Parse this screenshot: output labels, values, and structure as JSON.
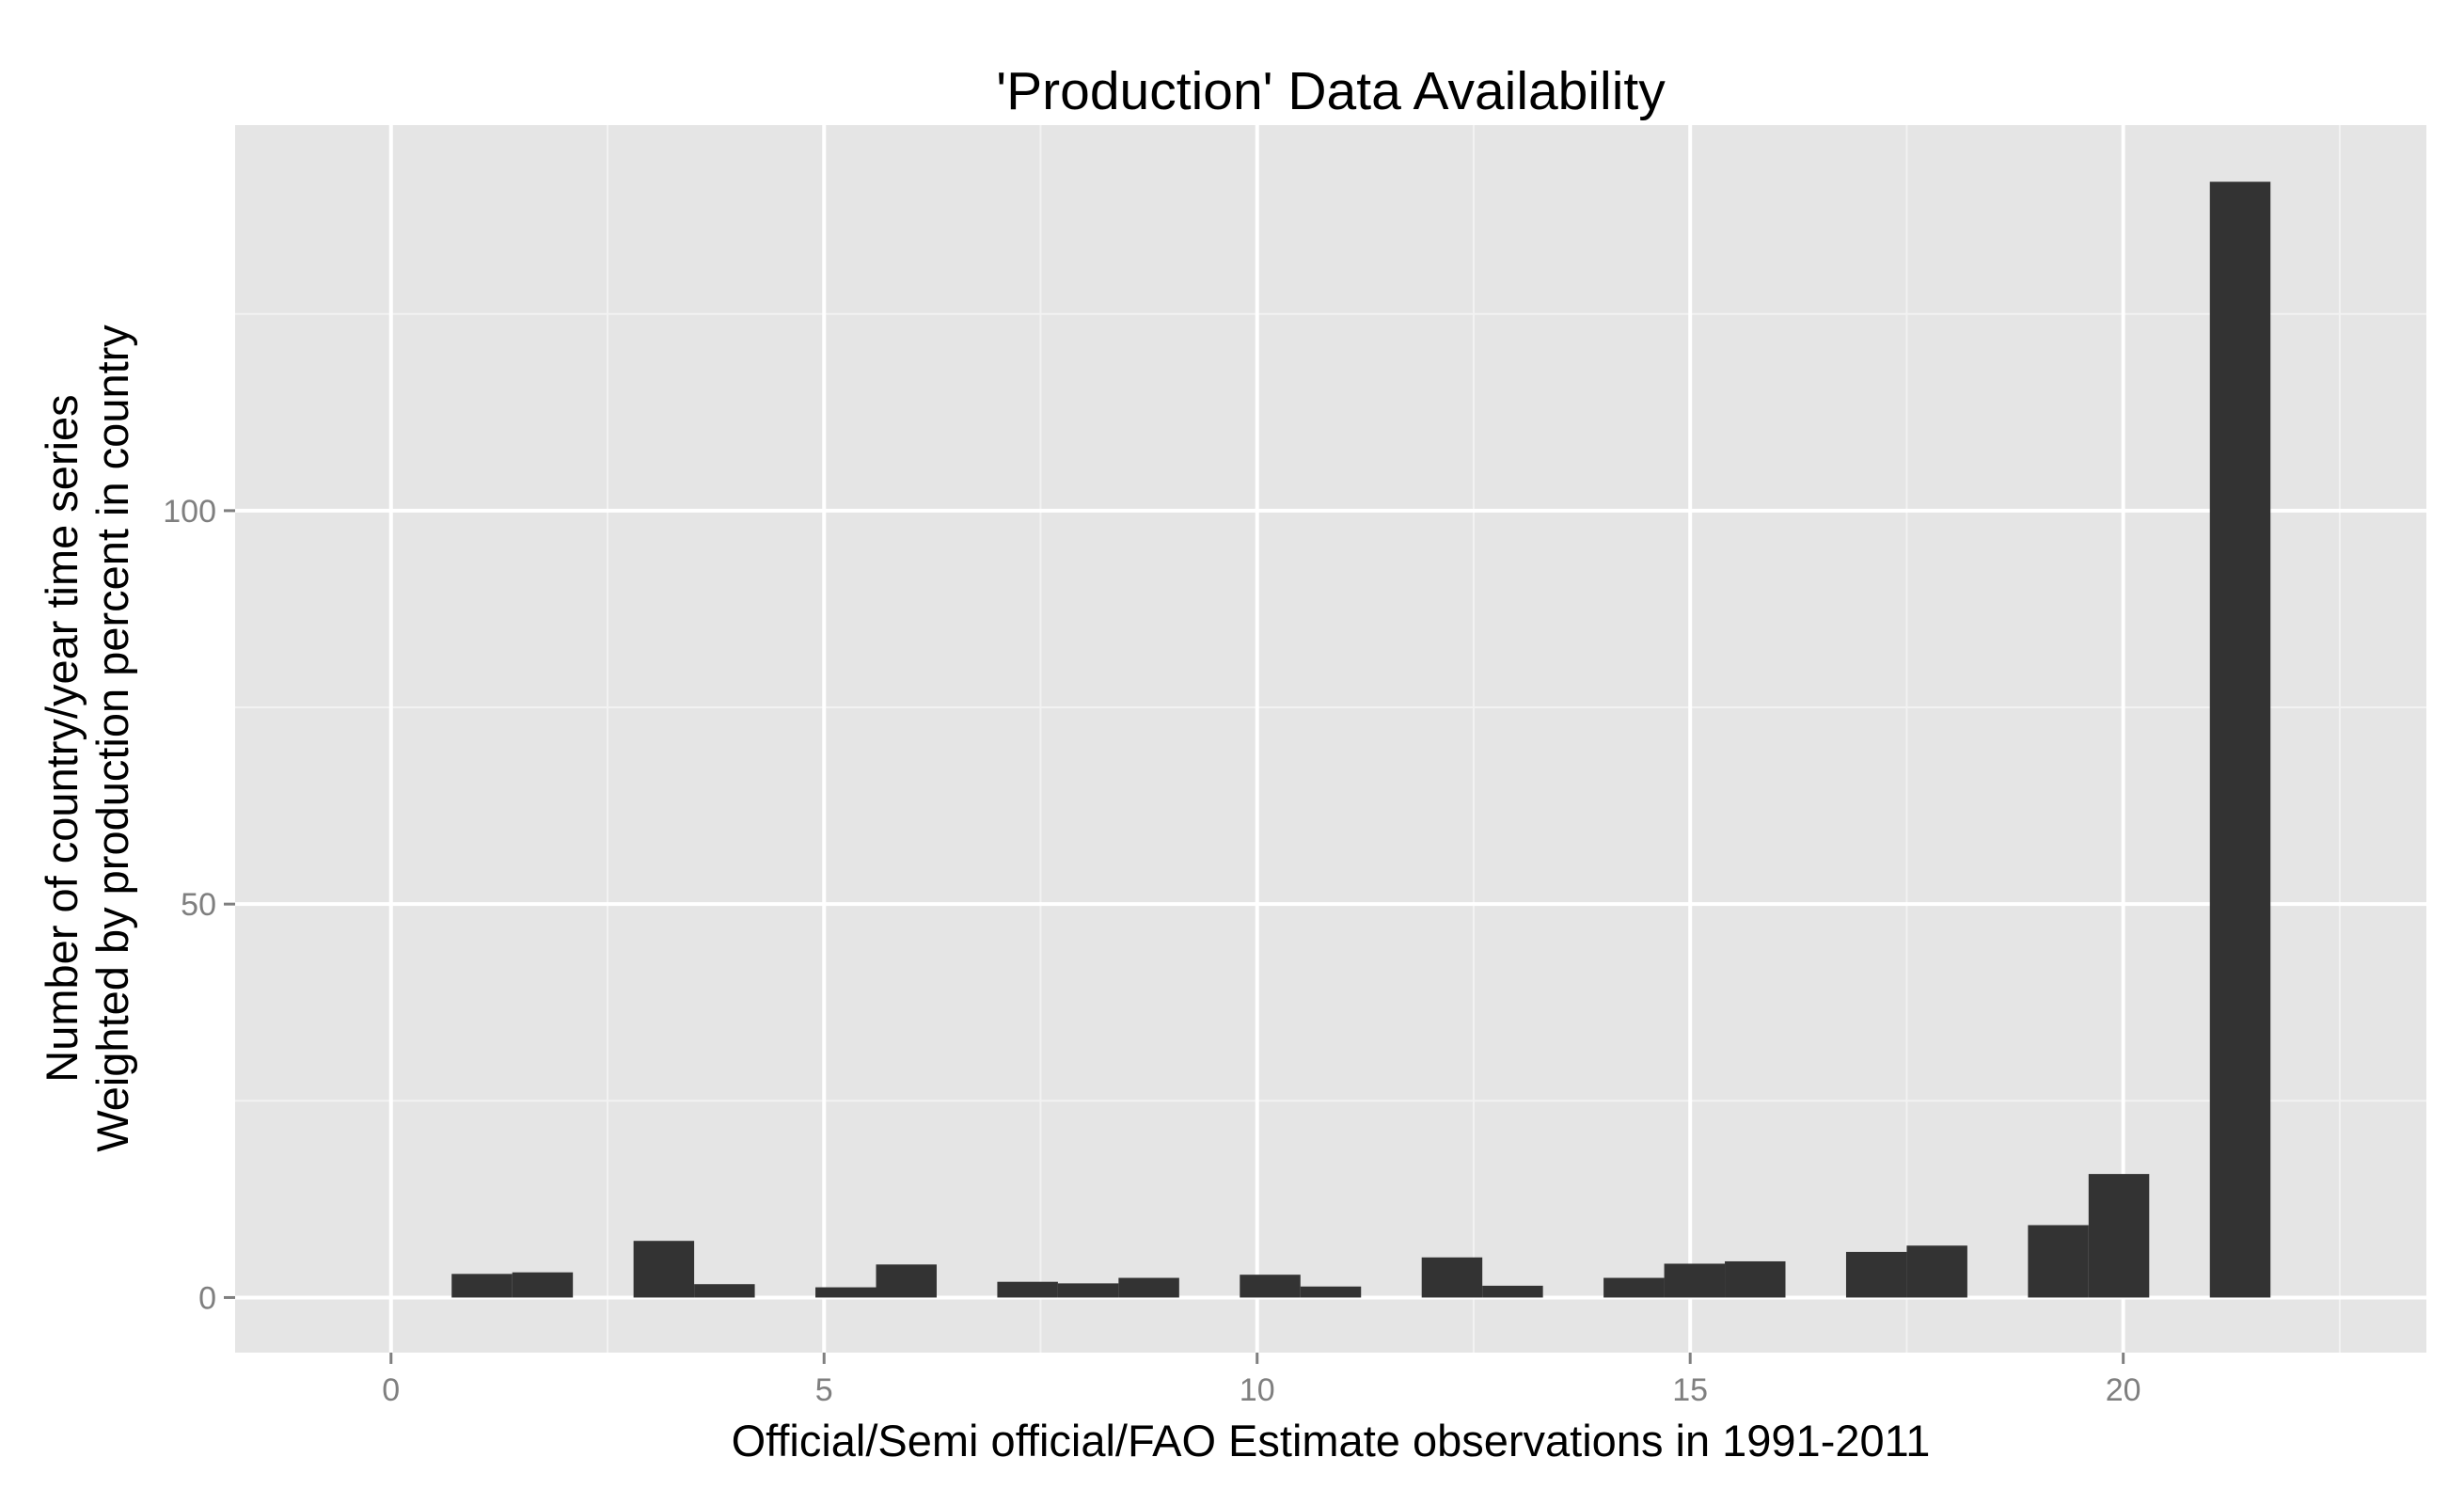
{
  "chart_data": {
    "type": "bar",
    "title": "'Production' Data Availability",
    "xlabel": "Official/Semi official/FAO Estimate observations in 1991-2011",
    "ylabel": [
      "Number of country/year time series",
      "Weighted by production percent in country"
    ],
    "xlim": [
      -1.8,
      23.5
    ],
    "ylim": [
      -7,
      149
    ],
    "x_ticks": [
      0,
      5,
      10,
      15,
      20
    ],
    "y_ticks": [
      0,
      50,
      100
    ],
    "bin_width": 0.7,
    "bins": [
      {
        "x0": 0.7,
        "x1": 1.4,
        "value": 3.0
      },
      {
        "x0": 1.4,
        "x1": 2.1,
        "value": 3.2
      },
      {
        "x0": 2.8,
        "x1": 3.5,
        "value": 7.2
      },
      {
        "x0": 3.5,
        "x1": 4.2,
        "value": 1.7
      },
      {
        "x0": 4.9,
        "x1": 5.6,
        "value": 1.3
      },
      {
        "x0": 5.6,
        "x1": 6.3,
        "value": 4.2
      },
      {
        "x0": 7.0,
        "x1": 7.7,
        "value": 2.0
      },
      {
        "x0": 7.7,
        "x1": 8.4,
        "value": 1.8
      },
      {
        "x0": 8.4,
        "x1": 9.1,
        "value": 2.5
      },
      {
        "x0": 9.8,
        "x1": 10.5,
        "value": 2.9
      },
      {
        "x0": 10.5,
        "x1": 11.2,
        "value": 1.4
      },
      {
        "x0": 11.9,
        "x1": 12.6,
        "value": 5.1
      },
      {
        "x0": 12.6,
        "x1": 13.3,
        "value": 1.5
      },
      {
        "x0": 14.0,
        "x1": 14.7,
        "value": 2.5
      },
      {
        "x0": 14.7,
        "x1": 15.4,
        "value": 4.3
      },
      {
        "x0": 15.4,
        "x1": 16.1,
        "value": 4.6
      },
      {
        "x0": 16.8,
        "x1": 17.5,
        "value": 5.8
      },
      {
        "x0": 17.5,
        "x1": 18.2,
        "value": 6.6
      },
      {
        "x0": 18.9,
        "x1": 19.6,
        "value": 9.2
      },
      {
        "x0": 19.6,
        "x1": 20.3,
        "value": 15.7
      },
      {
        "x0": 21.0,
        "x1": 21.7,
        "value": 141.8
      }
    ],
    "grid": true,
    "colors": {
      "panel": "#e5e5e5",
      "grid_major": "#ffffff",
      "grid_minor": "#f2f2f2",
      "bar": "#333333",
      "tick": "#7f7f7f"
    }
  }
}
